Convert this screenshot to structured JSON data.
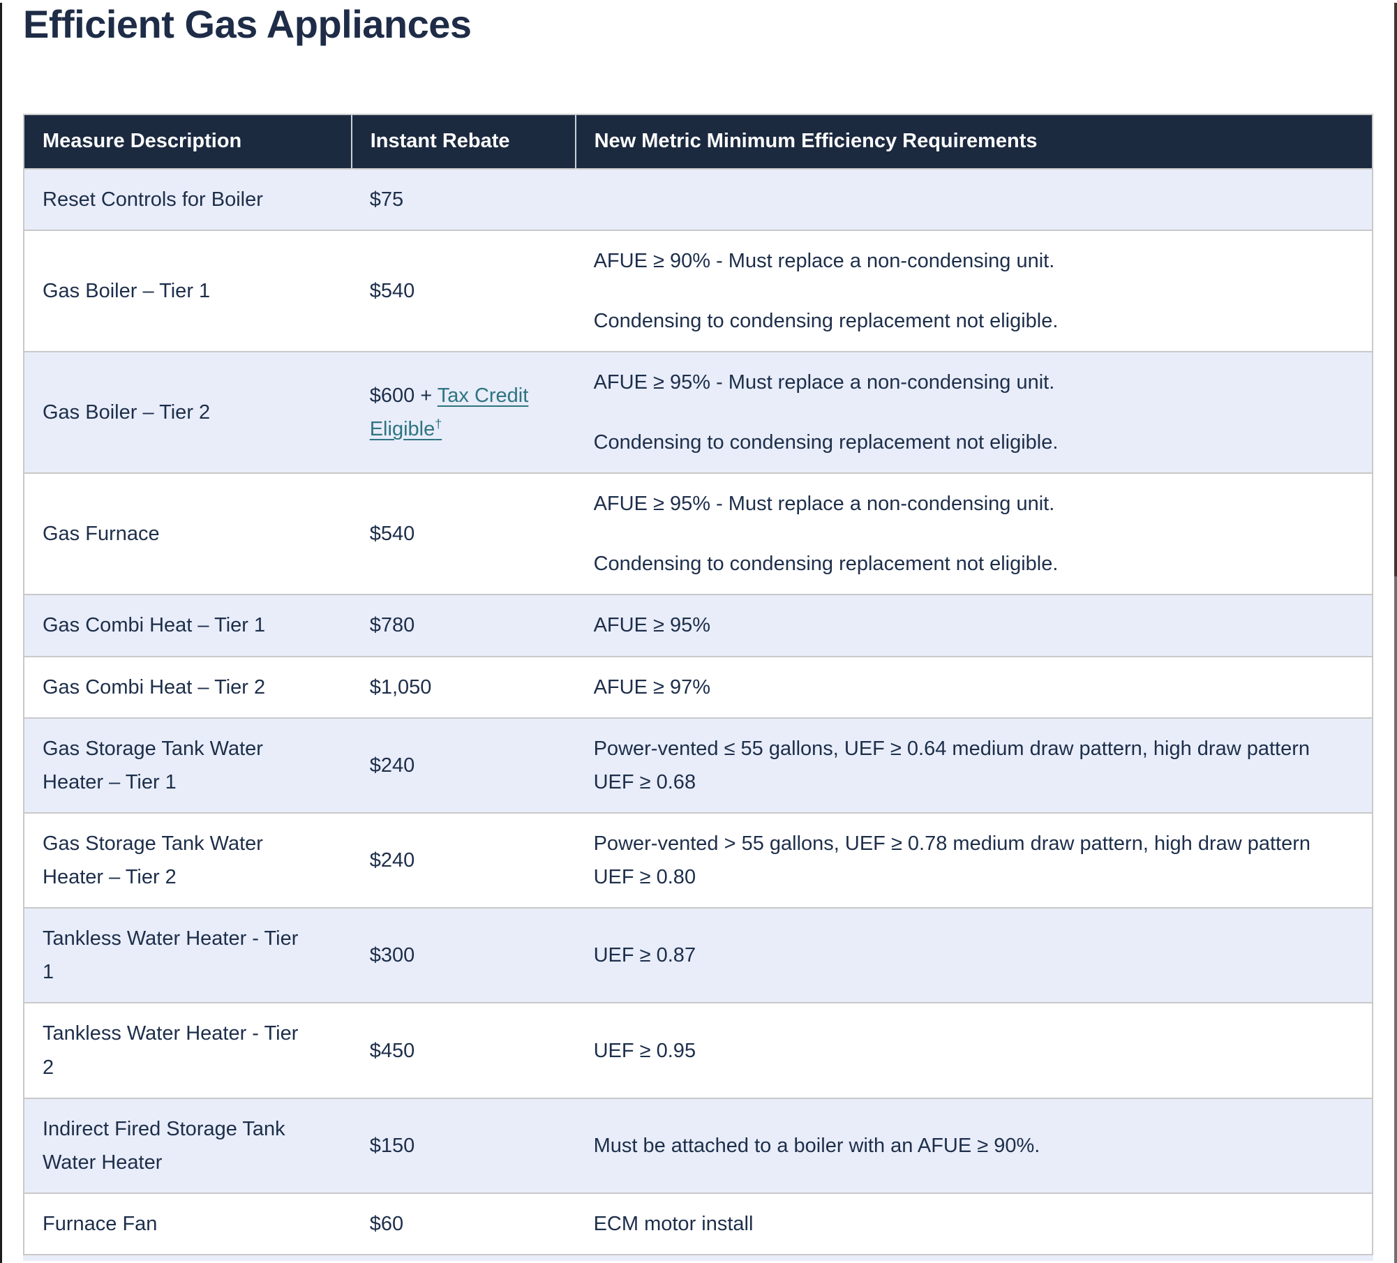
{
  "page": {
    "title": "Efficient Gas Appliances"
  },
  "theme": {
    "header_bg": "#1c2a40",
    "stripe_bg": "#e8edf9",
    "text": "#1d2e4a",
    "link": "#2f7482",
    "border": "#c9c9c9",
    "title": "#1e2c47"
  },
  "table": {
    "columns": [
      "Measure Description",
      "Instant Rebate",
      "New Metric Minimum Efficiency Requirements"
    ],
    "rows": [
      {
        "measure": "Reset Controls for Boiler",
        "rebate": "$75",
        "requirements": []
      },
      {
        "measure": "Gas Boiler – Tier 1",
        "rebate": "$540",
        "requirements": [
          "AFUE ≥ 90% - Must replace a non-condensing unit.",
          "Condensing to condensing replacement not eligible."
        ]
      },
      {
        "measure": "Gas Boiler – Tier 2",
        "rebate": "$600 + ",
        "rebate_link": "Tax Credit Eligible",
        "rebate_link_sup": "†",
        "requirements": [
          "AFUE ≥ 95% - Must replace a non-condensing unit.",
          "Condensing to condensing replacement not eligible."
        ]
      },
      {
        "measure": "Gas Furnace",
        "rebate": "$540",
        "requirements": [
          "AFUE ≥ 95% - Must replace a non-condensing unit.",
          "Condensing to condensing replacement not eligible."
        ]
      },
      {
        "measure": "Gas Combi Heat – Tier 1",
        "rebate": "$780",
        "requirements": [
          "AFUE ≥ 95%"
        ]
      },
      {
        "measure": "Gas Combi Heat – Tier 2",
        "rebate": "$1,050",
        "requirements": [
          "AFUE ≥ 97%"
        ]
      },
      {
        "measure": "Gas Storage Tank Water Heater – Tier 1",
        "rebate": "$240",
        "requirements": [
          "Power-vented ≤ 55 gallons, UEF ≥ 0.64 medium draw pattern, high draw pattern UEF ≥ 0.68"
        ]
      },
      {
        "measure": "Gas Storage Tank Water Heater – Tier 2",
        "rebate": "$240",
        "requirements": [
          "Power-vented > 55 gallons, UEF ≥ 0.78 medium draw pattern, high draw pattern UEF ≥ 0.80"
        ]
      },
      {
        "measure": "Tankless Water Heater - Tier 1",
        "rebate": "$300",
        "requirements": [
          "UEF ≥ 0.87"
        ]
      },
      {
        "measure": "Tankless Water Heater - Tier 2",
        "rebate": "$450",
        "requirements": [
          "UEF ≥ 0.95"
        ]
      },
      {
        "measure": "Indirect Fired Storage Tank Water Heater",
        "rebate": "$150",
        "requirements": [
          "Must be attached to a boiler with an AFUE ≥ 90%."
        ]
      },
      {
        "measure": "Furnace Fan",
        "rebate": "$60",
        "requirements": [
          "ECM motor install"
        ]
      }
    ]
  }
}
